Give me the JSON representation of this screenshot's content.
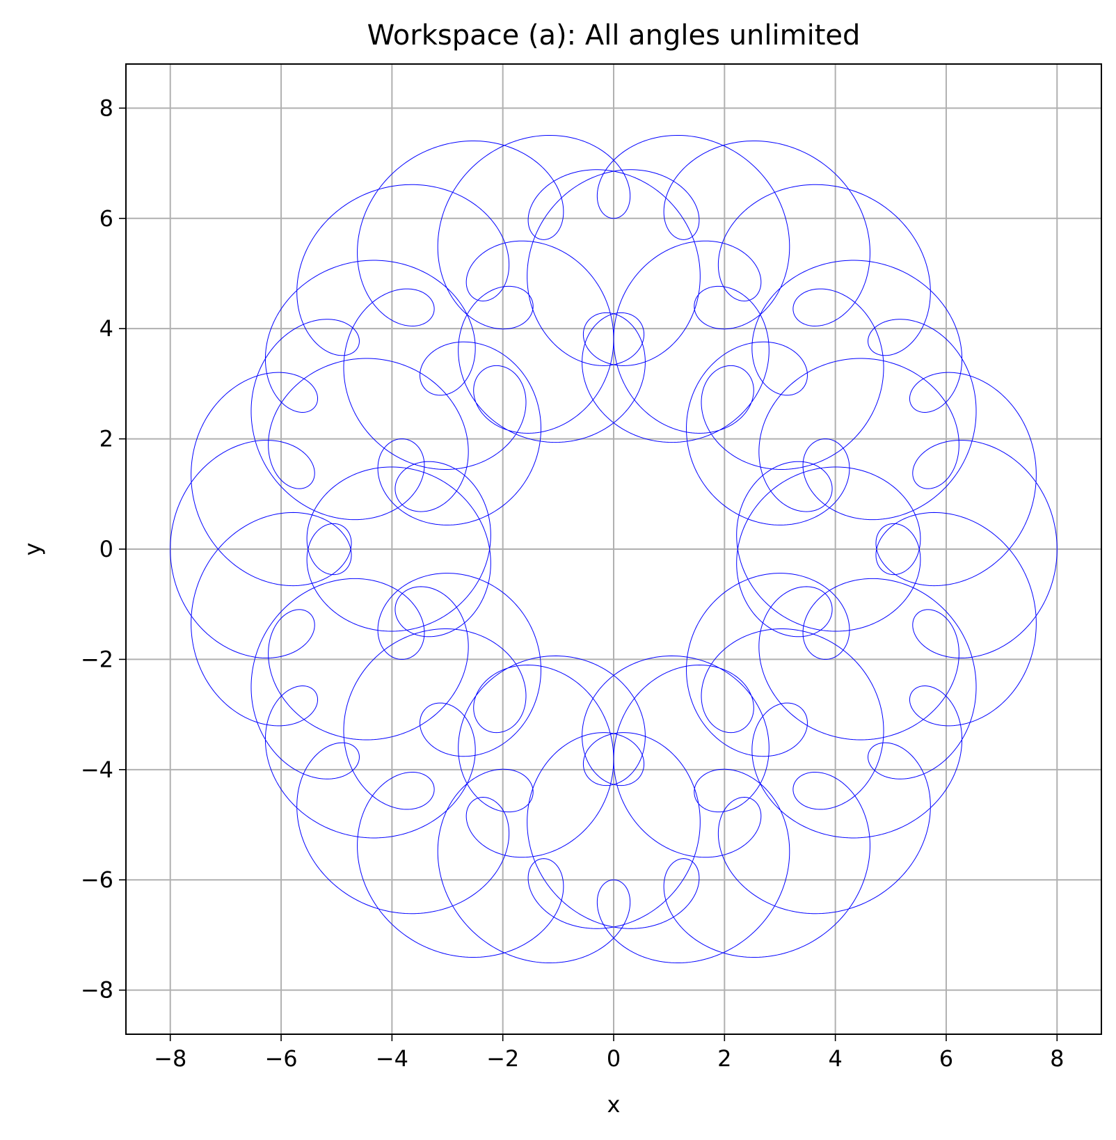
{
  "chart_data": {
    "type": "line",
    "title": "Workspace (a): All angles unlimited",
    "xlabel": "x",
    "ylabel": "y",
    "xlim": [
      -8.8,
      8.8
    ],
    "ylim": [
      -8.8,
      8.8
    ],
    "xticks": [
      -8,
      -6,
      -4,
      -2,
      0,
      2,
      4,
      6,
      8
    ],
    "yticks": [
      -8,
      -6,
      -4,
      -2,
      0,
      2,
      4,
      6,
      8
    ],
    "xtick_labels": [
      "−8",
      "−6",
      "−4",
      "−2",
      "0",
      "2",
      "4",
      "6",
      "8"
    ],
    "ytick_labels": [
      "−8",
      "−6",
      "−4",
      "−2",
      "0",
      "2",
      "4",
      "6",
      "8"
    ],
    "grid": true,
    "aspect": "equal",
    "series": [
      {
        "color": "#0000ff",
        "shape": "workspace annulus traced by a 3-link arm",
        "link_lengths": [
          5,
          2,
          1
        ],
        "inner_radius": 2,
        "outer_radius": 8
      }
    ]
  }
}
